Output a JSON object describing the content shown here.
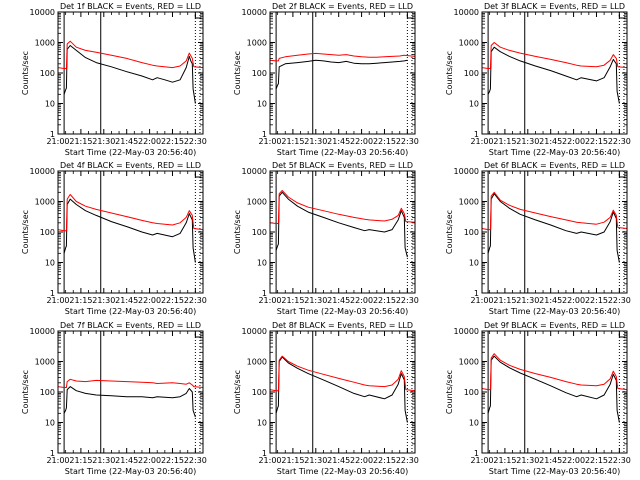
{
  "colors": {
    "events": "#000000",
    "lld": "#ff0000",
    "axis": "#000000",
    "background": "#ffffff"
  },
  "y_axis": {
    "type": "log",
    "ylim": [
      1,
      10000
    ],
    "tick_labels": [
      "1",
      "10",
      "100",
      "1000",
      "10000"
    ]
  },
  "x_axis": {
    "xlim_min": [
      0,
      95
    ],
    "tick_labels": [
      "21:00",
      "21:15",
      "21:30",
      "21:45",
      "22:00",
      "22:15",
      "22:30"
    ]
  },
  "chart_data": [
    {
      "type": "line",
      "title": "Det 1f BLACK = Events, RED = LLD",
      "ylabel": "Counts/sec",
      "xlabel": "Start Time (22-May-03 20:56:40)",
      "vlines_solid": [
        4,
        28
      ],
      "vlines_dotted": [
        90,
        93
      ],
      "series": [
        {
          "name": "Events",
          "color": "#000000",
          "x": [
            4,
            5,
            5.5,
            6,
            8,
            12,
            18,
            25,
            35,
            45,
            55,
            62,
            65,
            70,
            75,
            80,
            84,
            86,
            87,
            88,
            88.5,
            90
          ],
          "y": [
            20,
            28,
            32,
            600,
            800,
            550,
            320,
            220,
            160,
            110,
            80,
            60,
            70,
            60,
            50,
            60,
            150,
            350,
            250,
            200,
            30,
            10
          ]
        },
        {
          "name": "LLD",
          "color": "#ff0000",
          "x": [
            0,
            4,
            5.5,
            6,
            8,
            12,
            18,
            25,
            35,
            45,
            55,
            62,
            65,
            75,
            80,
            84,
            86,
            88,
            89,
            95
          ],
          "y": [
            150,
            140,
            140,
            900,
            1100,
            700,
            550,
            480,
            380,
            300,
            220,
            180,
            170,
            150,
            170,
            250,
            450,
            300,
            160,
            150
          ]
        }
      ]
    },
    {
      "type": "line",
      "title": "Det 2f BLACK = Events, RED = LLD",
      "ylabel": "Counts/sec",
      "xlabel": "Start Time (22-May-03 20:56:40)",
      "vlines_solid": [
        4,
        28
      ],
      "vlines_dotted": [
        90,
        93
      ],
      "series": [
        {
          "name": "Events",
          "color": "#000000",
          "x": [
            4,
            5,
            5.5,
            6,
            10,
            18,
            25,
            30,
            35,
            40,
            45,
            50,
            55,
            60,
            65,
            70,
            75,
            80,
            85,
            88,
            90
          ],
          "y": [
            30,
            40,
            45,
            160,
            200,
            220,
            240,
            260,
            250,
            230,
            220,
            240,
            210,
            200,
            200,
            210,
            220,
            230,
            240,
            250,
            260
          ]
        },
        {
          "name": "LLD",
          "color": "#ff0000",
          "x": [
            0,
            4,
            5.5,
            6,
            10,
            18,
            25,
            30,
            35,
            40,
            45,
            50,
            55,
            60,
            65,
            70,
            75,
            80,
            85,
            88,
            95
          ],
          "y": [
            260,
            250,
            250,
            300,
            340,
            380,
            420,
            440,
            420,
            400,
            380,
            400,
            360,
            340,
            330,
            330,
            340,
            350,
            360,
            380,
            350
          ]
        }
      ]
    },
    {
      "type": "line",
      "title": "Det 3f BLACK = Events, RED = LLD",
      "ylabel": "Counts/sec",
      "xlabel": "Start Time (22-May-03 20:56:40)",
      "vlines_solid": [
        4,
        28
      ],
      "vlines_dotted": [
        90,
        93
      ],
      "series": [
        {
          "name": "Events",
          "color": "#000000",
          "x": [
            4,
            5,
            5.5,
            6,
            8,
            12,
            18,
            25,
            35,
            45,
            55,
            62,
            65,
            75,
            80,
            84,
            86,
            88,
            88.5,
            90
          ],
          "y": [
            20,
            25,
            30,
            500,
            700,
            500,
            350,
            250,
            170,
            120,
            80,
            60,
            70,
            55,
            70,
            160,
            280,
            200,
            25,
            10
          ]
        },
        {
          "name": "LLD",
          "color": "#ff0000",
          "x": [
            0,
            4,
            5.5,
            6,
            8,
            12,
            18,
            25,
            35,
            45,
            55,
            62,
            65,
            75,
            80,
            84,
            86,
            88,
            89,
            95
          ],
          "y": [
            150,
            140,
            140,
            800,
            1000,
            700,
            550,
            450,
            350,
            280,
            220,
            180,
            170,
            160,
            180,
            260,
            400,
            300,
            160,
            150
          ]
        }
      ]
    },
    {
      "type": "line",
      "title": "Det 4f BLACK = Events, RED = LLD",
      "ylabel": "Counts/sec",
      "xlabel": "Start Time (22-May-03 20:56:40)",
      "vlines_solid": [
        4,
        28
      ],
      "vlines_dotted": [
        90,
        93
      ],
      "series": [
        {
          "name": "Events",
          "color": "#000000",
          "x": [
            4,
            5,
            5.5,
            6,
            8,
            12,
            18,
            25,
            35,
            45,
            55,
            62,
            65,
            75,
            80,
            84,
            86,
            88,
            88.5,
            90
          ],
          "y": [
            20,
            30,
            35,
            800,
            1200,
            800,
            500,
            350,
            220,
            150,
            100,
            80,
            90,
            70,
            90,
            200,
            400,
            250,
            30,
            10
          ]
        },
        {
          "name": "LLD",
          "color": "#ff0000",
          "x": [
            0,
            4,
            5.5,
            6,
            8,
            12,
            18,
            25,
            35,
            45,
            55,
            62,
            65,
            75,
            80,
            84,
            86,
            88,
            89,
            95
          ],
          "y": [
            120,
            110,
            110,
            1200,
            1700,
            1000,
            700,
            550,
            420,
            320,
            240,
            200,
            190,
            170,
            200,
            300,
            500,
            350,
            130,
            120
          ]
        }
      ]
    },
    {
      "type": "line",
      "title": "Det 5f BLACK = Events, RED = LLD",
      "ylabel": "Counts/sec",
      "xlabel": "Start Time (22-May-03 20:56:40)",
      "vlines_solid": [
        4,
        28
      ],
      "vlines_dotted": [
        90,
        93
      ],
      "series": [
        {
          "name": "Events",
          "color": "#000000",
          "x": [
            4,
            5,
            5.5,
            6,
            8,
            12,
            18,
            25,
            35,
            45,
            55,
            62,
            65,
            75,
            80,
            84,
            86,
            88,
            88.5,
            90
          ],
          "y": [
            25,
            35,
            40,
            1500,
            2000,
            1200,
            700,
            450,
            300,
            200,
            140,
            110,
            120,
            100,
            120,
            250,
            500,
            300,
            30,
            15
          ]
        },
        {
          "name": "LLD",
          "color": "#ff0000",
          "x": [
            0,
            4,
            5.5,
            6,
            8,
            12,
            18,
            25,
            35,
            45,
            55,
            62,
            65,
            75,
            80,
            84,
            86,
            88,
            89,
            95
          ],
          "y": [
            200,
            190,
            190,
            1800,
            2300,
            1400,
            900,
            650,
            500,
            380,
            300,
            260,
            250,
            230,
            260,
            350,
            600,
            400,
            220,
            210
          ]
        }
      ]
    },
    {
      "type": "line",
      "title": "Det 6f BLACK = Events, RED = LLD",
      "ylabel": "Counts/sec",
      "xlabel": "Start Time (22-May-03 20:56:40)",
      "vlines_solid": [
        4,
        28
      ],
      "vlines_dotted": [
        90,
        93
      ],
      "series": [
        {
          "name": "Events",
          "color": "#000000",
          "x": [
            4,
            5,
            5.5,
            6,
            8,
            12,
            18,
            25,
            35,
            45,
            55,
            62,
            65,
            75,
            80,
            84,
            86,
            88,
            88.5,
            90
          ],
          "y": [
            20,
            30,
            35,
            1200,
            1800,
            1000,
            600,
            380,
            250,
            170,
            110,
            90,
            100,
            80,
            100,
            220,
            450,
            280,
            25,
            10
          ]
        },
        {
          "name": "LLD",
          "color": "#ff0000",
          "x": [
            0,
            4,
            5.5,
            6,
            8,
            12,
            18,
            25,
            35,
            45,
            55,
            62,
            65,
            75,
            80,
            84,
            86,
            88,
            89,
            95
          ],
          "y": [
            130,
            120,
            120,
            1500,
            2000,
            1100,
            750,
            550,
            420,
            320,
            250,
            210,
            200,
            180,
            210,
            300,
            520,
            350,
            140,
            130
          ]
        }
      ]
    },
    {
      "type": "line",
      "title": "Det 7f BLACK = Events, RED = LLD",
      "ylabel": "Counts/sec",
      "xlabel": "Start Time (22-May-03 20:56:40)",
      "vlines_solid": [
        4,
        28
      ],
      "vlines_dotted": [
        90,
        93
      ],
      "series": [
        {
          "name": "Events",
          "color": "#000000",
          "x": [
            4,
            5,
            5.5,
            6,
            8,
            12,
            18,
            25,
            35,
            45,
            55,
            62,
            65,
            75,
            80,
            84,
            86,
            88,
            88.5,
            90
          ],
          "y": [
            20,
            25,
            30,
            120,
            150,
            110,
            90,
            80,
            75,
            70,
            70,
            65,
            70,
            65,
            70,
            90,
            130,
            100,
            25,
            15
          ]
        },
        {
          "name": "LLD",
          "color": "#ff0000",
          "x": [
            0,
            4,
            5.5,
            6,
            8,
            12,
            18,
            25,
            35,
            45,
            55,
            62,
            65,
            75,
            80,
            84,
            86,
            88,
            89,
            95
          ],
          "y": [
            150,
            140,
            140,
            220,
            260,
            230,
            220,
            240,
            230,
            220,
            210,
            200,
            190,
            200,
            190,
            180,
            200,
            170,
            150,
            140
          ]
        }
      ]
    },
    {
      "type": "line",
      "title": "Det 8f BLACK = Events, RED = LLD",
      "ylabel": "Counts/sec",
      "xlabel": "Start Time (22-May-03 20:56:40)",
      "vlines_solid": [
        4,
        28
      ],
      "vlines_dotted": [
        90,
        93
      ],
      "series": [
        {
          "name": "Events",
          "color": "#000000",
          "x": [
            4,
            5,
            5.5,
            6,
            8,
            12,
            18,
            25,
            35,
            45,
            55,
            62,
            65,
            75,
            80,
            84,
            86,
            88,
            88.5,
            90
          ],
          "y": [
            20,
            30,
            35,
            1000,
            1400,
            900,
            600,
            400,
            250,
            150,
            90,
            70,
            80,
            60,
            80,
            180,
            400,
            250,
            25,
            10
          ]
        },
        {
          "name": "LLD",
          "color": "#ff0000",
          "x": [
            0,
            4,
            5.5,
            6,
            8,
            12,
            18,
            25,
            35,
            45,
            55,
            62,
            65,
            75,
            80,
            84,
            86,
            88,
            89,
            95
          ],
          "y": [
            120,
            110,
            110,
            1100,
            1500,
            1000,
            700,
            520,
            380,
            280,
            210,
            170,
            160,
            150,
            170,
            260,
            500,
            320,
            120,
            110
          ]
        }
      ]
    },
    {
      "type": "line",
      "title": "Det 9f BLACK = Events, RED = LLD",
      "ylabel": "Counts/sec",
      "xlabel": "Start Time (22-May-03 20:56:40)",
      "vlines_solid": [
        4,
        28
      ],
      "vlines_dotted": [
        90,
        93
      ],
      "series": [
        {
          "name": "Events",
          "color": "#000000",
          "x": [
            4,
            5,
            5.5,
            6,
            8,
            12,
            18,
            25,
            35,
            45,
            55,
            62,
            65,
            75,
            80,
            84,
            86,
            88,
            88.5,
            90
          ],
          "y": [
            20,
            30,
            35,
            1100,
            1500,
            950,
            620,
            420,
            260,
            160,
            95,
            70,
            80,
            60,
            80,
            180,
            380,
            240,
            25,
            10
          ]
        },
        {
          "name": "LLD",
          "color": "#ff0000",
          "x": [
            0,
            4,
            5.5,
            6,
            8,
            12,
            18,
            25,
            35,
            45,
            55,
            62,
            65,
            75,
            80,
            84,
            86,
            88,
            89,
            95
          ],
          "y": [
            130,
            120,
            120,
            1300,
            1800,
            1100,
            750,
            550,
            400,
            300,
            220,
            180,
            170,
            160,
            180,
            270,
            480,
            320,
            130,
            120
          ]
        }
      ]
    }
  ]
}
